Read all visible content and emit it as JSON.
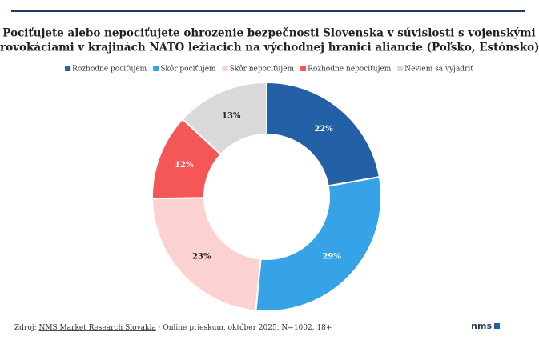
{
  "chart_data": {
    "type": "donut",
    "title": [
      "Pociťujete alebo nepociťujete ohrozenie bezpečnosti Slovenska v súvislosti s vojenskými",
      "provokáciami v krajinách NATO ležiacich na východnej hranici aliancie (Poľsko, Estónsko)?"
    ],
    "categories": [
      "Rozhodne pociťujem",
      "Skôr pociťujem",
      "Skôr nepociťujem",
      "Rozhodne nepociťujem",
      "Neviem sa vyjadriť"
    ],
    "values": [
      22,
      29,
      23,
      12,
      13
    ],
    "value_labels": [
      "22%",
      "29%",
      "23%",
      "12%",
      "13%"
    ],
    "colors": [
      "#2360a5",
      "#36a3e6",
      "#fcd2d0",
      "#f55656",
      "#d9d9d9"
    ],
    "label_colors": [
      "#ffffff",
      "#ffffff",
      "#222222",
      "#ffffff",
      "#222222"
    ],
    "legend": "top"
  },
  "footer": {
    "source_prefix": "Zdroj:",
    "source_link": "NMS Market Research Slovakia",
    "source_suffix": "· Online prieskum, október 2025, N=1002, 18+",
    "logo": "nms"
  }
}
